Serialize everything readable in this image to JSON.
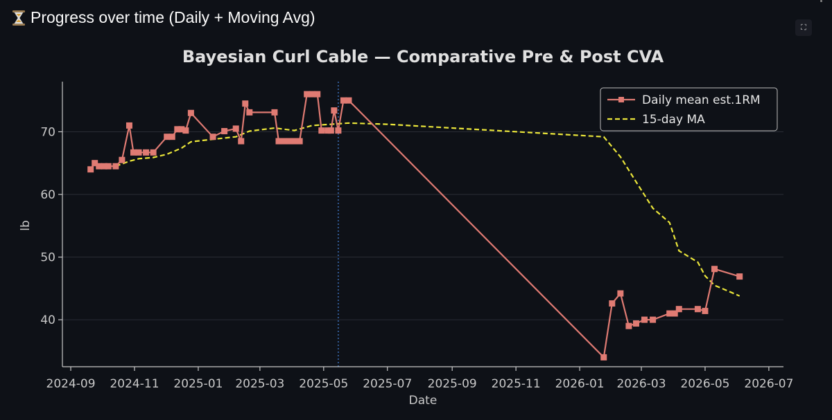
{
  "header": {
    "title": "Progress over time (Daily + Moving Avg)",
    "icon": "hourglass-icon"
  },
  "toolbar": {
    "fullscreen_icon": "fullscreen-icon"
  },
  "colors": {
    "background": "#0e1117",
    "daily": "#e07b73",
    "ma": "#ebe63a",
    "divider": "#3b6fb8",
    "axis": "#c9c9c9"
  },
  "chart_data": {
    "type": "line",
    "title": "Bayesian Curl Cable — Comparative Pre & Post CVA",
    "xlabel": "Date",
    "ylabel": "lb",
    "x_ticks": [
      "2024-09",
      "2024-11",
      "2025-01",
      "2025-03",
      "2025-05",
      "2025-07",
      "2025-09",
      "2025-11",
      "2026-01",
      "2026-03",
      "2026-05",
      "2026-07"
    ],
    "y_ticks": [
      40,
      50,
      60,
      70
    ],
    "ylim": [
      32.5,
      78
    ],
    "xlim": [
      "2024-08-24",
      "2026-07-15"
    ],
    "grid": "horizontal",
    "legend_position": "top-right",
    "vertical_marker_date": "2025-05-15",
    "series": [
      {
        "name": "Daily mean est.1RM",
        "style": "solid-square-markers",
        "points": [
          [
            "2024-09-20",
            64.0
          ],
          [
            "2024-09-24",
            65.0
          ],
          [
            "2024-09-28",
            64.5
          ],
          [
            "2024-10-03",
            64.5
          ],
          [
            "2024-10-07",
            64.5
          ],
          [
            "2024-10-14",
            64.5
          ],
          [
            "2024-10-20",
            65.5
          ],
          [
            "2024-10-27",
            71.0
          ],
          [
            "2024-10-31",
            66.7
          ],
          [
            "2024-11-05",
            66.7
          ],
          [
            "2024-11-12",
            66.7
          ],
          [
            "2024-11-19",
            66.7
          ],
          [
            "2024-12-02",
            69.2
          ],
          [
            "2024-12-07",
            69.2
          ],
          [
            "2024-12-12",
            70.4
          ],
          [
            "2024-12-16",
            70.4
          ],
          [
            "2024-12-20",
            70.2
          ],
          [
            "2024-12-25",
            73.0
          ],
          [
            "2025-01-15",
            69.2
          ],
          [
            "2025-01-26",
            70.1
          ],
          [
            "2025-02-06",
            70.5
          ],
          [
            "2025-02-11",
            68.5
          ],
          [
            "2025-02-15",
            74.5
          ],
          [
            "2025-02-19",
            73.1
          ],
          [
            "2025-03-15",
            73.1
          ],
          [
            "2025-03-19",
            68.5
          ],
          [
            "2025-03-24",
            68.5
          ],
          [
            "2025-03-29",
            68.5
          ],
          [
            "2025-04-03",
            68.5
          ],
          [
            "2025-04-08",
            68.5
          ],
          [
            "2025-04-15",
            76.0
          ],
          [
            "2025-04-20",
            76.0
          ],
          [
            "2025-04-25",
            76.0
          ],
          [
            "2025-04-29",
            70.2
          ],
          [
            "2025-05-05",
            70.2
          ],
          [
            "2025-05-08",
            70.2
          ],
          [
            "2025-05-11",
            73.4
          ],
          [
            "2025-05-15",
            70.2
          ],
          [
            "2025-05-20",
            75.0
          ],
          [
            "2025-05-25",
            75.0
          ],
          [
            "2026-01-24",
            34.0
          ],
          [
            "2026-02-01",
            42.6
          ],
          [
            "2026-02-09",
            44.2
          ],
          [
            "2026-02-17",
            39.0
          ],
          [
            "2026-02-24",
            39.4
          ],
          [
            "2026-03-04",
            40.0
          ],
          [
            "2026-03-12",
            40.0
          ],
          [
            "2026-03-28",
            41.0
          ],
          [
            "2026-04-02",
            41.0
          ],
          [
            "2026-04-06",
            41.7
          ],
          [
            "2026-04-24",
            41.7
          ],
          [
            "2026-05-01",
            41.4
          ],
          [
            "2026-05-10",
            48.1
          ],
          [
            "2026-06-03",
            46.9
          ]
        ]
      },
      {
        "name": "15-day MA",
        "style": "dashed",
        "points": [
          [
            "2024-10-14",
            64.5
          ],
          [
            "2024-10-27",
            65.3
          ],
          [
            "2024-11-05",
            65.7
          ],
          [
            "2024-11-19",
            65.9
          ],
          [
            "2024-12-02",
            66.4
          ],
          [
            "2024-12-16",
            67.4
          ],
          [
            "2024-12-25",
            68.4
          ],
          [
            "2025-01-15",
            68.8
          ],
          [
            "2025-02-06",
            69.2
          ],
          [
            "2025-02-19",
            70.1
          ],
          [
            "2025-03-15",
            70.6
          ],
          [
            "2025-04-03",
            70.2
          ],
          [
            "2025-04-20",
            71.0
          ],
          [
            "2025-05-08",
            71.2
          ],
          [
            "2025-05-25",
            71.4
          ],
          [
            "2025-07-01",
            71.2
          ],
          [
            "2026-01-24",
            69.2
          ],
          [
            "2026-02-09",
            66.0
          ],
          [
            "2026-02-24",
            62.0
          ],
          [
            "2026-03-12",
            57.8
          ],
          [
            "2026-03-28",
            55.5
          ],
          [
            "2026-04-06",
            51.0
          ],
          [
            "2026-04-24",
            49.2
          ],
          [
            "2026-05-01",
            47.0
          ],
          [
            "2026-05-10",
            45.5
          ],
          [
            "2026-06-03",
            43.8
          ]
        ]
      }
    ]
  }
}
